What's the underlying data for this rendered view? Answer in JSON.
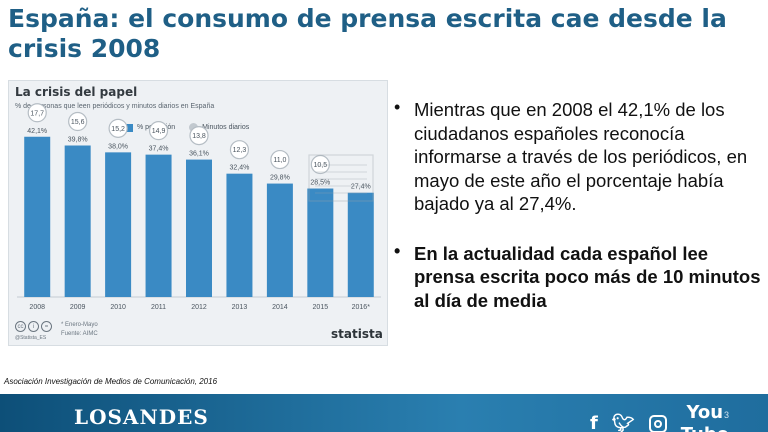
{
  "slide": {
    "title": "España: el consumo de prensa escrita cae desde la crisis 2008",
    "bullets": [
      "Mientras que en 2008 el 42,1% de los ciudadanos españoles reconocía informarse a través de los periódicos, en mayo de este año el porcentaje había bajado ya al 27,4%.",
      "En la actualidad cada español lee prensa escrita poco más de 10 minutos al día de media"
    ],
    "source": "Asociación Investigación de Medios de Comunicación, 2016",
    "page_number": "3"
  },
  "footer": {
    "brand": "LOSANDES",
    "social_icons": [
      "facebook-icon",
      "twitter-icon",
      "instagram-icon",
      "youtube-icon"
    ],
    "youtube_top": "You",
    "youtube_bottom": "Tube",
    "colors": {
      "bar_start": "#0d4f78",
      "bar_end": "#2a7fb0"
    }
  },
  "chart_data": {
    "type": "bar",
    "title": "La crisis del papel",
    "subtitle": "% de personas que leen periódicos y minutos diarios en España",
    "legend": [
      "% población",
      "Minutos diarios"
    ],
    "categories": [
      "2008",
      "2009",
      "2010",
      "2011",
      "2012",
      "2013",
      "2014",
      "2015",
      "2016*"
    ],
    "series": [
      {
        "name": "% población",
        "values": [
          42.1,
          39.8,
          38.0,
          37.4,
          36.1,
          32.4,
          29.8,
          28.5,
          27.4
        ],
        "labels": [
          "42,1%",
          "39,8%",
          "38,0%",
          "37,4%",
          "36,1%",
          "32,4%",
          "29,8%",
          "28,5%",
          "27,4%"
        ],
        "color": "#3a8ac4"
      },
      {
        "name": "Minutos diarios",
        "values": [
          17.7,
          15.6,
          15.2,
          14.9,
          13.8,
          12.3,
          11.0,
          10.5,
          null
        ],
        "labels": [
          "17,7",
          "15,6",
          "15,2",
          "14,9",
          "13,8",
          "12,3",
          "11,0",
          "10,5",
          ""
        ],
        "color": "#c2c9cf"
      }
    ],
    "ylim": [
      0,
      50
    ],
    "notes": [
      "* Enero-Mayo",
      "Fuente: AIMC"
    ],
    "attribution": "@Statista_ES",
    "logo": "statista"
  }
}
